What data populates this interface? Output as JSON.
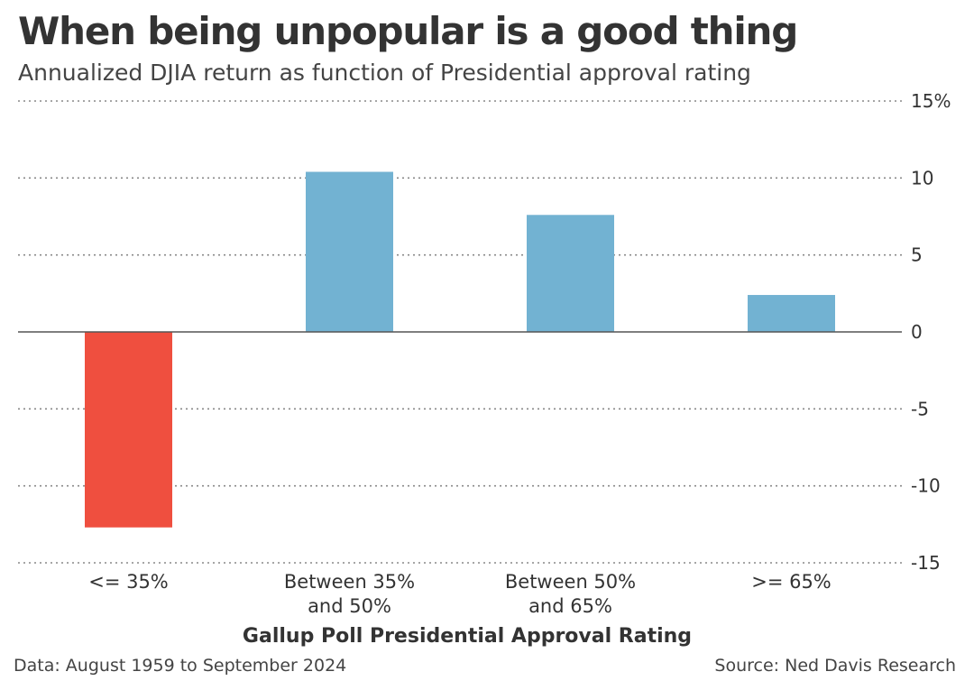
{
  "title": "When being unpopular is a good thing",
  "subtitle": "Annualized DJIA return as function of Presidential approval rating",
  "footer": {
    "data_note": "Data: August 1959 to September 2024",
    "source": "Source: Ned Davis Research"
  },
  "colors": {
    "positive": "#72b2d2",
    "negative": "#ef4f3f"
  },
  "chart_data": {
    "type": "bar",
    "categories": [
      [
        "<= 35%"
      ],
      [
        "Between 35%",
        "and 50%"
      ],
      [
        "Between 50%",
        "and 65%"
      ],
      [
        ">= 65%"
      ]
    ],
    "values": [
      -12.7,
      10.4,
      7.6,
      2.4
    ],
    "xlabel": "Gallup Poll Presidential Approval Rating",
    "ylabel": "",
    "ylim": [
      -15,
      15
    ],
    "yticks": [
      15,
      10,
      5,
      0,
      -5,
      -10,
      -15
    ],
    "ytick_labels": [
      "15%",
      "10",
      "5",
      "0",
      "-5",
      "-10",
      "-15"
    ],
    "grid": true,
    "y_axis_side": "right"
  }
}
